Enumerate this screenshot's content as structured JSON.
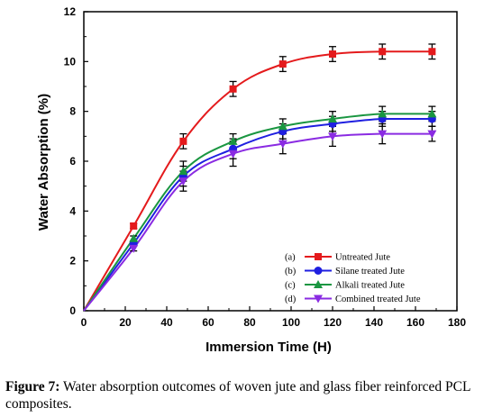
{
  "chart_data": {
    "type": "line",
    "xlabel": "Immersion Time (H)",
    "ylabel": "Water Absorption (%)",
    "xlim": [
      0,
      180
    ],
    "ylim": [
      0,
      12
    ],
    "xticks": [
      0,
      20,
      40,
      60,
      80,
      100,
      120,
      140,
      160,
      180
    ],
    "yticks": [
      0,
      2,
      4,
      6,
      8,
      10,
      12
    ],
    "grid": false,
    "legend_position": "bottom-right",
    "x": [
      0,
      24,
      48,
      72,
      96,
      120,
      144,
      168
    ],
    "series": [
      {
        "name": "Untreated Jute",
        "tag": "(a)",
        "color": "#e41a1c",
        "marker": "square",
        "values": [
          0,
          3.4,
          6.8,
          8.9,
          9.9,
          10.3,
          10.4,
          10.4
        ],
        "errors": [
          0,
          0.1,
          0.3,
          0.3,
          0.3,
          0.3,
          0.3,
          0.3
        ]
      },
      {
        "name": "Silane treated Jute",
        "tag": "(b)",
        "color": "#1f1fe0",
        "marker": "circle",
        "values": [
          0,
          2.7,
          5.4,
          6.5,
          7.2,
          7.5,
          7.7,
          7.7
        ],
        "errors": [
          0,
          0.1,
          0.4,
          0.4,
          0.3,
          0.3,
          0.3,
          0.3
        ]
      },
      {
        "name": "Alkali treated Jute",
        "tag": "(c)",
        "color": "#1a9641",
        "marker": "triangle",
        "values": [
          0,
          2.9,
          5.6,
          6.8,
          7.4,
          7.7,
          7.9,
          7.9
        ],
        "errors": [
          0,
          0.1,
          0.4,
          0.3,
          0.3,
          0.3,
          0.3,
          0.3
        ]
      },
      {
        "name": "Combined treated Jute",
        "tag": "(d)",
        "color": "#8a2be2",
        "marker": "triangle-down",
        "values": [
          0,
          2.5,
          5.2,
          6.3,
          6.7,
          7.0,
          7.1,
          7.1
        ],
        "errors": [
          0,
          0.1,
          0.4,
          0.5,
          0.4,
          0.4,
          0.4,
          0.3
        ]
      }
    ]
  },
  "caption": {
    "label": "Figure 7:",
    "text": " Water absorption outcomes of woven jute and glass fiber reinforced PCL composites."
  }
}
